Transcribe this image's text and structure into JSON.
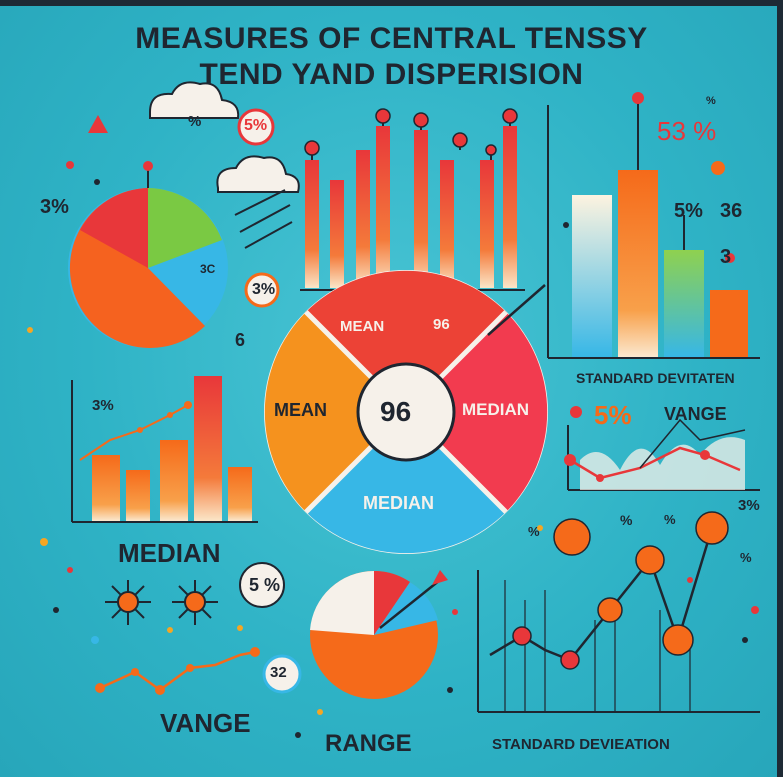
{
  "title_line1": "MEASURES OF CENTRAL TENSSY",
  "title_line2": "TEND YAND DISPERISION",
  "labels": {
    "median_left": "MEDIAN",
    "vange_bottom": "VANGE",
    "range_bottom": "RANGE",
    "standard_deviation_bottom": "STANDARD DEVIEATION",
    "standard_deviation_right": "STANDARD DEVITATEN",
    "vange_right": "VANGE"
  },
  "wheel": {
    "segments": [
      "MEAN",
      "MEDIAN",
      "MEDIAN",
      "MEAN"
    ],
    "top_right_label": "96",
    "center": "96"
  },
  "percent_tags": {
    "top_left": "3%",
    "cloud": "%",
    "red_circle": "5%",
    "pie_small": "3C",
    "orange_circle": "3%",
    "pie_side": "6",
    "bar_left": "3%",
    "top_right_big": "53 %",
    "top_right_small": "%",
    "right_mid": "5%",
    "right_mid2": "36",
    "right_mid3": "3",
    "right_pct": "5%",
    "bottom_circle": "5 %",
    "bottom_blue": "32",
    "scatter_tag": "3%",
    "scatter_tag2": "%",
    "scatter_tag3": "%",
    "scatter_tag4": "%",
    "scatter_tag5": "%"
  },
  "colors": {
    "background": "#2fb3c6",
    "red": "#e8373a",
    "orange": "#f56a1a",
    "yellow_orange": "#f5a623",
    "green": "#7ac943",
    "blue": "#37b7e6",
    "dark": "#1f2630"
  }
}
